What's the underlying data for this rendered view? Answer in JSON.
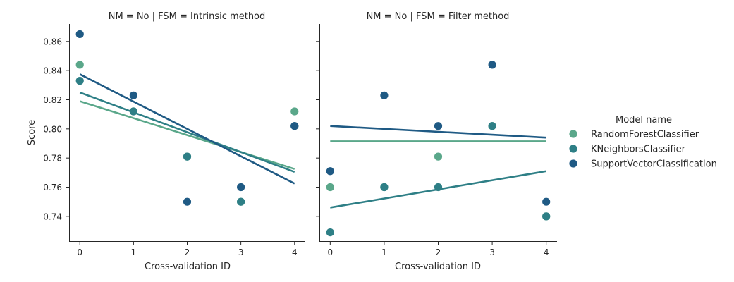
{
  "legend": {
    "title": "Model name"
  },
  "chart_data": {
    "type": "scatter",
    "ylabel": "Score",
    "xlabel": "Cross-validation ID",
    "x_ticks": [
      0,
      1,
      2,
      3,
      4
    ],
    "y_ticks": [
      0.74,
      0.76,
      0.78,
      0.8,
      0.82,
      0.84,
      0.86
    ],
    "xlim": [
      -0.2,
      4.2
    ],
    "ylim": [
      0.723,
      0.872
    ],
    "grid": false,
    "legend_placement": "right",
    "colors": {
      "RandomForestClassifier": "#5aa78a",
      "KNeighborsClassifier": "#2e7f86",
      "SupportVectorClassification": "#1f5a84"
    },
    "panels": [
      {
        "title": "NM = No | FSM = Intrinsic method",
        "series": [
          {
            "name": "RandomForestClassifier",
            "x": [
              0,
              1,
              2,
              3,
              4
            ],
            "y": [
              0.844,
              0.812,
              0.781,
              0.75,
              0.812
            ],
            "fit": [
              0.819,
              0.7725
            ]
          },
          {
            "name": "KNeighborsClassifier",
            "x": [
              0,
              1,
              2,
              3,
              4
            ],
            "y": [
              0.833,
              0.812,
              0.781,
              0.75,
              0.802
            ],
            "fit": [
              0.825,
              0.7705
            ]
          },
          {
            "name": "SupportVectorClassification",
            "x": [
              0,
              1,
              2,
              3,
              4
            ],
            "y": [
              0.865,
              0.823,
              0.75,
              0.76,
              0.802
            ],
            "fit": [
              0.8375,
              0.7625
            ]
          }
        ]
      },
      {
        "title": "NM = No | FSM = Filter method",
        "series": [
          {
            "name": "RandomForestClassifier",
            "x": [
              0,
              1,
              2,
              3,
              4
            ],
            "y": [
              0.76,
              0.76,
              0.781,
              0.802,
              0.74
            ],
            "fit": [
              0.7915,
              0.7915
            ]
          },
          {
            "name": "KNeighborsClassifier",
            "x": [
              0,
              1,
              2,
              3,
              4
            ],
            "y": [
              0.729,
              0.76,
              0.76,
              0.802,
              0.74
            ],
            "fit": [
              0.746,
              0.771
            ]
          },
          {
            "name": "SupportVectorClassification",
            "x": [
              0,
              1,
              2,
              3,
              4
            ],
            "y": [
              0.771,
              0.823,
              0.802,
              0.844,
              0.75
            ],
            "fit": [
              0.802,
              0.794
            ]
          }
        ]
      }
    ]
  }
}
